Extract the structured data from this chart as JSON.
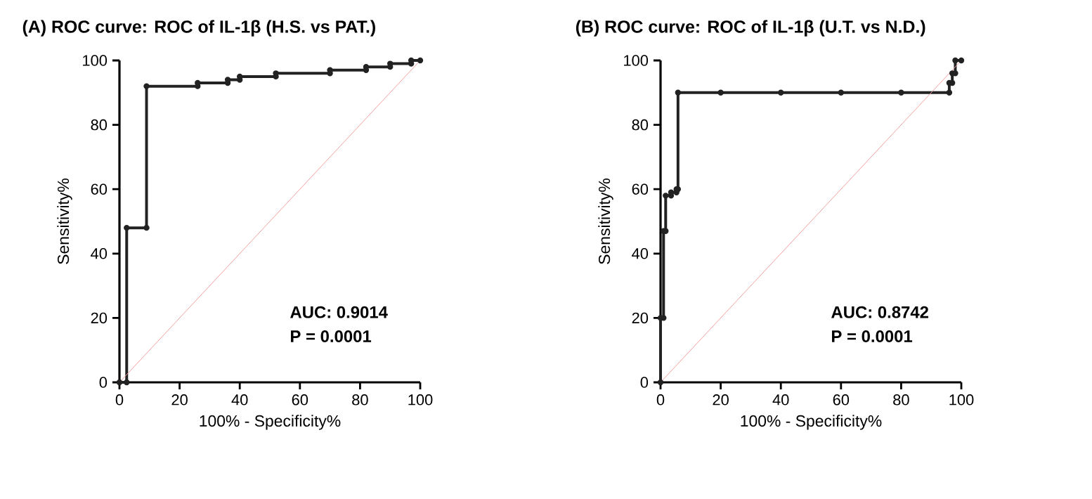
{
  "chart_data": [
    {
      "type": "line",
      "title": "(A) ROC curve: ROC of IL-1β (H.S. vs PAT.)",
      "xlabel": "100% - Specificity%",
      "ylabel": "Sensitivity%",
      "xlim": [
        0,
        100
      ],
      "ylim": [
        0,
        100
      ],
      "xticks": [
        0,
        20,
        40,
        60,
        80,
        100
      ],
      "yticks": [
        0,
        20,
        40,
        60,
        80,
        100
      ],
      "grid": false,
      "marker": "circle",
      "series": [
        {
          "color": "#222222",
          "x": [
            0,
            2.4,
            2.4,
            9,
            9,
            26,
            26,
            36,
            36,
            40,
            40,
            52,
            52,
            70,
            70,
            82,
            82,
            90,
            90,
            97,
            97,
            100
          ],
          "values": [
            0,
            0,
            48,
            48,
            92,
            92,
            93,
            93,
            94,
            94,
            95,
            95,
            96,
            96,
            97,
            97,
            98,
            98,
            99,
            99,
            100,
            100
          ]
        },
        {
          "type": "line",
          "color": "#f4a0a0",
          "marker": "none",
          "x": [
            0,
            100
          ],
          "values": [
            0,
            100
          ]
        }
      ],
      "annotations": [
        "AUC: 0.9014",
        "P = 0.0001"
      ]
    },
    {
      "type": "line",
      "title": "(B) ROC curve: ROC of IL-1β (U.T. vs N.D.)",
      "xlabel": "100% - Specificity%",
      "ylabel": "Sensitivity%",
      "xlim": [
        0,
        100
      ],
      "ylim": [
        0,
        100
      ],
      "xticks": [
        0,
        20,
        40,
        60,
        80,
        100
      ],
      "yticks": [
        0,
        20,
        40,
        60,
        80,
        100
      ],
      "grid": false,
      "marker": "circle",
      "series": [
        {
          "color": "#222222",
          "x": [
            0,
            0,
            1,
            1,
            1.7,
            1.7,
            3.5,
            3.5,
            5.3,
            5.3,
            5.8,
            5.8,
            20,
            40,
            60,
            80,
            96,
            96,
            97,
            97,
            98,
            98,
            100
          ],
          "values": [
            0,
            20,
            20,
            47,
            47,
            58,
            58,
            59,
            59,
            60,
            60,
            90,
            90,
            90,
            90,
            90,
            90,
            93,
            93,
            96,
            96,
            100,
            100
          ]
        },
        {
          "type": "line",
          "color": "#f4a0a0",
          "marker": "none",
          "x": [
            0,
            100
          ],
          "values": [
            0,
            100
          ]
        }
      ],
      "annotations": [
        "AUC: 0.8742",
        "P = 0.0001"
      ]
    }
  ]
}
